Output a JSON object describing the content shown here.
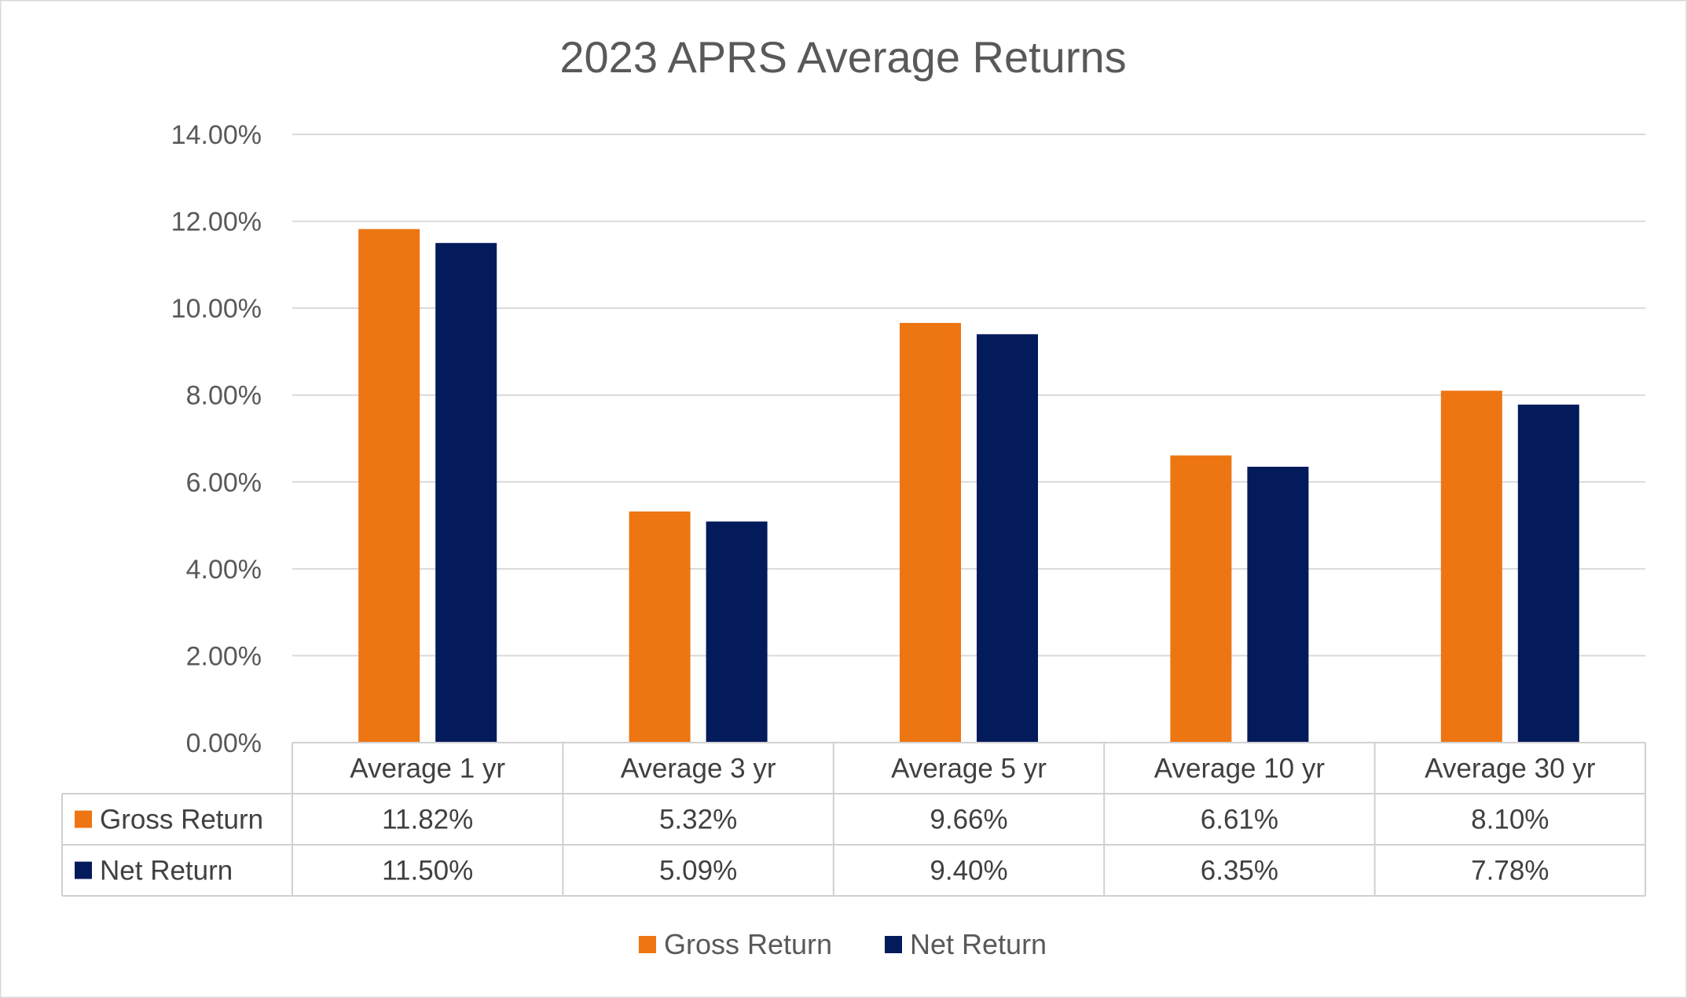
{
  "chart_data": {
    "type": "bar",
    "title": "2023 APRS Average Returns",
    "xlabel": "",
    "ylabel": "",
    "categories": [
      "Average 1 yr",
      "Average 3 yr",
      "Average 5 yr",
      "Average 10 yr",
      "Average 30 yr"
    ],
    "series": [
      {
        "name": "Gross Return",
        "color": "#ED7512",
        "values": [
          11.82,
          5.32,
          9.66,
          6.61,
          8.1
        ],
        "labels": [
          "11.82%",
          "5.32%",
          "9.66%",
          "6.61%",
          "8.10%"
        ]
      },
      {
        "name": "Net Return",
        "color": "#031A5B",
        "values": [
          11.5,
          5.09,
          9.4,
          6.35,
          7.78
        ],
        "labels": [
          "11.50%",
          "5.09%",
          "9.40%",
          "6.35%",
          "7.78%"
        ]
      }
    ],
    "ylim": [
      0,
      14
    ],
    "yticks": [
      0,
      2,
      4,
      6,
      8,
      10,
      12,
      14
    ],
    "ytick_labels": [
      "0.00%",
      "2.00%",
      "4.00%",
      "6.00%",
      "8.00%",
      "10.00%",
      "12.00%",
      "14.00%"
    ],
    "grid": true,
    "legend_position": "bottom",
    "data_table": true
  }
}
